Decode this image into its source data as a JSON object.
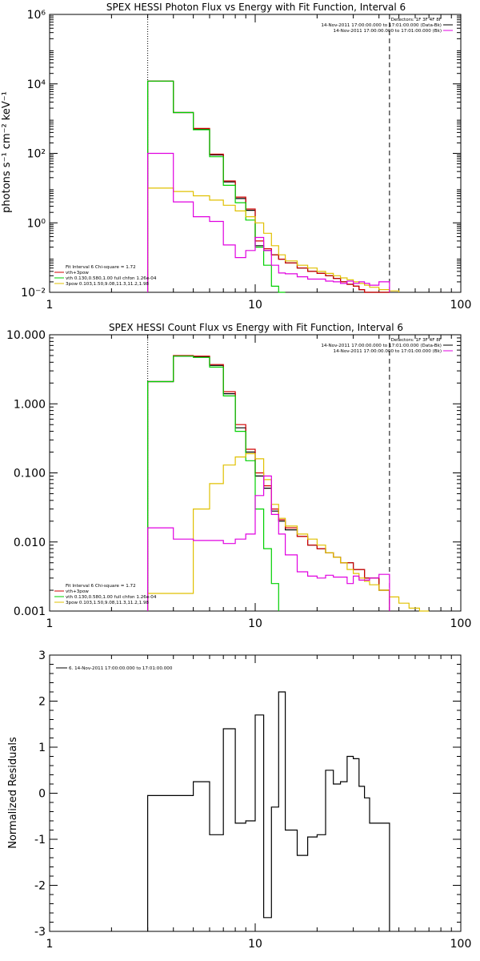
{
  "chart_data": [
    {
      "type": "line",
      "title": "SPEX HESSI Photon Flux vs Energy with Fit Function, Interval 6",
      "ylabel": "photons s⁻¹ cm⁻² keV⁻¹",
      "xscale": "log",
      "yscale": "log",
      "xlim": [
        1,
        100
      ],
      "ylim": [
        0.01,
        1000000
      ],
      "xticks": [
        1,
        10,
        100
      ],
      "xtick_labels": [
        "1",
        "10",
        "100"
      ],
      "yticks": [
        0.01,
        1,
        100,
        10000,
        1000000
      ],
      "ytick_labels": [
        "10⁻²",
        "10⁰",
        "10²",
        "10⁴",
        "10⁶"
      ],
      "vlines": [
        {
          "x": 3,
          "style": "dotted"
        },
        {
          "x": 45,
          "style": "dashed"
        }
      ],
      "legend_top_right": {
        "lines": [
          "Detectors: 1F 3F 4F 8F",
          "14-Nov-2011 17:00:00.000 to 17:01:00.000 (Data-Bk)",
          "14-Nov-2011 17:00:00.000 to 17:01:00.000 (Bk)"
        ],
        "colors": [
          "#000000",
          "#000000",
          "#e000e0"
        ]
      },
      "legend_bottom_left": {
        "lines": [
          "Fit Interval 6   Chi-square = 1.72",
          "vth+3pow",
          "vth 0.130,0.580,1.00  full chfon 1.26e-04",
          "3pow 0.103,1.50,9.08,11.3,11.2,1.98"
        ],
        "colors": [
          "#000000",
          "#d00000",
          "#00d000",
          "#e0c000"
        ]
      },
      "series": [
        {
          "color": "#000000",
          "edges": [
            3,
            4,
            5,
            6,
            7,
            8,
            9,
            10,
            11,
            12,
            13,
            14,
            16,
            18,
            20,
            22,
            24,
            26,
            28,
            30,
            32,
            34,
            36,
            40,
            45
          ],
          "values": [
            12000,
            1500,
            500,
            90,
            15,
            5,
            2.3,
            0.22,
            0.16,
            0.12,
            0.09,
            0.07,
            0.05,
            0.04,
            0.035,
            0.03,
            0.025,
            0.02,
            0.017,
            0.015,
            0.012,
            0.01,
            0.01,
            0.01
          ]
        },
        {
          "color": "#d00000",
          "edges": [
            3,
            4,
            5,
            6,
            7,
            8,
            9,
            10,
            11,
            12,
            13,
            14,
            16,
            18,
            20,
            22,
            24,
            26,
            28,
            30,
            32,
            34,
            36,
            40,
            45
          ],
          "values": [
            12000,
            1500,
            520,
            95,
            16,
            5.5,
            2.5,
            0.3,
            0.18,
            0.12,
            0.09,
            0.07,
            0.05,
            0.04,
            0.035,
            0.03,
            0.025,
            0.02,
            0.017,
            0.015,
            0.012,
            0.01,
            0.01,
            0.01
          ]
        },
        {
          "color": "#00d000",
          "edges": [
            3,
            4,
            5,
            6,
            7,
            8,
            9,
            10,
            11,
            12,
            13,
            14
          ],
          "values": [
            12000,
            1500,
            480,
            80,
            12,
            3.8,
            1.2,
            0.2,
            0.06,
            0.015,
            0.01
          ]
        },
        {
          "color": "#e0c000",
          "edges": [
            3,
            4,
            5,
            6,
            7,
            8,
            9,
            10,
            11,
            12,
            13,
            14,
            16,
            18,
            20,
            22,
            24,
            26,
            28,
            30,
            32,
            34,
            36,
            40,
            45,
            50
          ],
          "values": [
            10,
            8,
            6,
            4.5,
            3.2,
            2.2,
            1.5,
            1.0,
            0.5,
            0.22,
            0.12,
            0.08,
            0.06,
            0.05,
            0.04,
            0.035,
            0.03,
            0.026,
            0.023,
            0.02,
            0.018,
            0.016,
            0.014,
            0.012,
            0.011
          ]
        },
        {
          "color": "#e000e0",
          "edges": [
            3,
            4,
            5,
            6,
            7,
            8,
            9,
            10,
            11,
            12,
            13,
            14,
            16,
            18,
            20,
            22,
            24,
            26,
            28,
            30,
            32,
            34,
            36,
            40,
            45
          ],
          "values": [
            100,
            4,
            1.5,
            1.1,
            0.23,
            0.1,
            0.16,
            0.38,
            0.16,
            0.06,
            0.036,
            0.034,
            0.028,
            0.024,
            0.024,
            0.021,
            0.02,
            0.018,
            0.021,
            0.018,
            0.02,
            0.018,
            0.016,
            0.02
          ]
        }
      ]
    },
    {
      "type": "line",
      "title": "SPEX HESSI Count Flux vs Energy with Fit Function, Interval 6",
      "ylabel": "",
      "xscale": "log",
      "yscale": "log",
      "xlim": [
        1,
        100
      ],
      "ylim": [
        0.001,
        10
      ],
      "xticks": [
        1,
        10,
        100
      ],
      "xtick_labels": [
        "1",
        "10",
        "100"
      ],
      "yticks": [
        0.001,
        0.01,
        0.1,
        1,
        10
      ],
      "ytick_labels": [
        "0.001",
        "0.010",
        "0.100",
        "1.000",
        "10.000"
      ],
      "vlines": [
        {
          "x": 3,
          "style": "dotted"
        },
        {
          "x": 45,
          "style": "dashed"
        }
      ],
      "legend_top_right": {
        "lines": [
          "Detectors: 1F 3F 4F 8F",
          "14-Nov-2011 17:00:00.000 to 17:01:00.000 (Data-Bk)",
          "14-Nov-2011 17:00:00.000 to 17:01:00.000 (Bk)"
        ],
        "colors": [
          "#000000",
          "#000000",
          "#e000e0"
        ]
      },
      "legend_bottom_left": {
        "lines": [
          "Fit Interval 6   Chi-square = 1.72",
          "vth+3pow",
          "vth 0.130,0.580,1.00  full chfon 1.26e-04",
          "3pow 0.103,1.50,9.08,11.3,11.2,1.98"
        ],
        "colors": [
          "#000000",
          "#d00000",
          "#00d000",
          "#e0c000"
        ]
      },
      "series": [
        {
          "color": "#000000",
          "edges": [
            3,
            4,
            5,
            6,
            7,
            8,
            9,
            10,
            11,
            12,
            13,
            14,
            16,
            18,
            20,
            22,
            24,
            26,
            28,
            30,
            32,
            34,
            36,
            40,
            45
          ],
          "values": [
            2.1,
            4.9,
            4.8,
            3.6,
            1.4,
            0.45,
            0.2,
            0.09,
            0.06,
            0.028,
            0.02,
            0.015,
            0.012,
            0.009,
            0.008,
            0.007,
            0.006,
            0.005,
            0.005,
            0.004,
            0.004,
            0.003,
            0.003,
            0.002
          ]
        },
        {
          "color": "#d00000",
          "edges": [
            3,
            4,
            5,
            6,
            7,
            8,
            9,
            10,
            11,
            12,
            13,
            14,
            16,
            18,
            20,
            22,
            24,
            26,
            28,
            30,
            32,
            34,
            36,
            40,
            45
          ],
          "values": [
            2.1,
            5.0,
            4.9,
            3.7,
            1.5,
            0.5,
            0.22,
            0.1,
            0.065,
            0.03,
            0.021,
            0.016,
            0.012,
            0.009,
            0.008,
            0.007,
            0.006,
            0.005,
            0.005,
            0.004,
            0.004,
            0.003,
            0.003,
            0.002
          ]
        },
        {
          "color": "#00d000",
          "edges": [
            3,
            4,
            5,
            6,
            7,
            8,
            9,
            10,
            11,
            12,
            13
          ],
          "values": [
            2.1,
            4.9,
            4.7,
            3.4,
            1.3,
            0.4,
            0.15,
            0.03,
            0.008,
            0.0025
          ]
        },
        {
          "color": "#e0c000",
          "edges": [
            3,
            4,
            5,
            6,
            7,
            8,
            9,
            10,
            11,
            12,
            13,
            14,
            16,
            18,
            20,
            22,
            24,
            26,
            28,
            30,
            32,
            34,
            36,
            40,
            45,
            50,
            56,
            63,
            70
          ],
          "values": [
            0.0018,
            0.0018,
            0.03,
            0.07,
            0.13,
            0.17,
            0.19,
            0.16,
            0.08,
            0.035,
            0.022,
            0.017,
            0.013,
            0.011,
            0.009,
            0.007,
            0.006,
            0.005,
            0.004,
            0.0035,
            0.003,
            0.0027,
            0.0024,
            0.002,
            0.0016,
            0.0013,
            0.0011,
            0.001
          ]
        },
        {
          "color": "#e000e0",
          "edges": [
            3,
            4,
            5,
            6,
            7,
            8,
            9,
            10,
            11,
            12,
            13,
            14,
            16,
            18,
            20,
            22,
            24,
            26,
            28,
            30,
            32,
            34,
            36,
            40,
            45
          ],
          "values": [
            0.016,
            0.011,
            0.0105,
            0.0105,
            0.0095,
            0.011,
            0.013,
            0.047,
            0.09,
            0.025,
            0.013,
            0.0065,
            0.0037,
            0.0032,
            0.003,
            0.0033,
            0.0031,
            0.0031,
            0.0025,
            0.0032,
            0.0028,
            0.0028,
            0.003,
            0.0034
          ]
        }
      ]
    },
    {
      "type": "line",
      "title": "",
      "ylabel": "Normalized Residuals",
      "xscale": "log",
      "yscale": "linear",
      "xlim": [
        1,
        100
      ],
      "ylim": [
        -3,
        3
      ],
      "xticks": [
        1,
        10,
        100
      ],
      "xtick_labels": [
        "1",
        "10",
        "100"
      ],
      "yticks": [
        -3,
        -2,
        -1,
        0,
        1,
        2,
        3
      ],
      "ytick_labels": [
        "-3",
        "-2",
        "-1",
        "0",
        "1",
        "2",
        "3"
      ],
      "legend_top_left": {
        "lines": [
          "6. 14-Nov-2011 17:00:00.000 to 17:01:00.000"
        ],
        "colors": [
          "#000000"
        ]
      },
      "series": [
        {
          "color": "#000000",
          "edges": [
            3,
            4,
            5,
            6,
            7,
            8,
            9,
            10,
            11,
            12,
            13,
            14,
            16,
            18,
            20,
            22,
            24,
            26,
            28,
            30,
            32,
            34,
            36,
            40,
            45
          ],
          "values": [
            -0.05,
            -0.05,
            0.25,
            -0.9,
            1.4,
            -0.65,
            -0.6,
            1.7,
            -2.7,
            -0.3,
            2.2,
            -0.8,
            -1.35,
            -0.95,
            -0.9,
            0.5,
            0.2,
            0.25,
            0.8,
            0.75,
            0.15,
            -0.1,
            -0.65,
            -0.65
          ]
        }
      ]
    }
  ]
}
